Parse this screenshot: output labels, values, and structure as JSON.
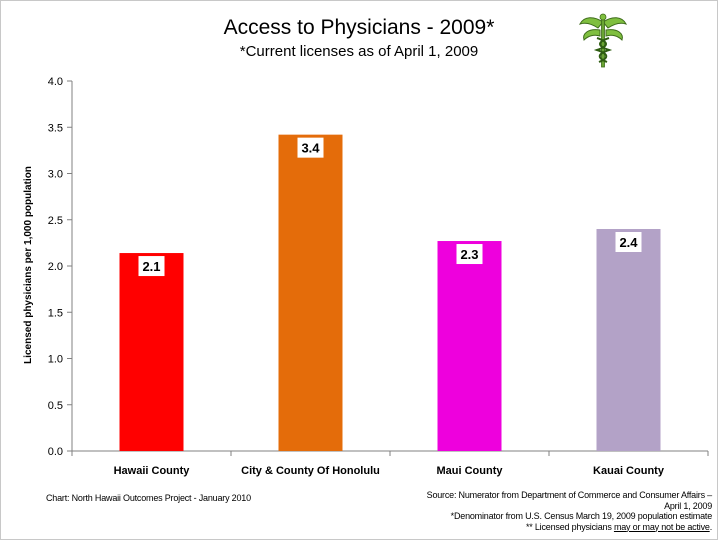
{
  "chart_data": {
    "type": "bar",
    "title": "Access to Physicians - 2009*",
    "subtitle": "*Current licenses as of April 1, 2009",
    "ylabel": "Licensed physicians per 1,000 population",
    "xlabel": "",
    "ylim": [
      0,
      4.0
    ],
    "yticks": [
      "0.0",
      "0.5",
      "1.0",
      "1.5",
      "2.0",
      "2.5",
      "3.0",
      "3.5",
      "4.0"
    ],
    "categories": [
      "Hawaii County",
      "City & County Of Honolulu",
      "Maui County",
      "Kauai County"
    ],
    "values": [
      2.14,
      3.42,
      2.27,
      2.4
    ],
    "data_labels": [
      "2.1",
      "3.4",
      "2.3",
      "2.4"
    ],
    "colors": [
      "#ff0000",
      "#e46c0a",
      "#ee00dd",
      "#b3a2c7"
    ],
    "grid": false,
    "legend": "none"
  },
  "logo": {
    "icon": "caduceus-icon",
    "color": "#7fbf3f"
  },
  "footer": {
    "left": "Chart: North Hawaii Outcomes Project - January 2010",
    "right_line1": "Source:  Numerator from Department of Commerce and Consumer Affairs –",
    "right_line2": "April 1, 2009",
    "right_line3": "*Denominator from U.S. Census March 19, 2009 population estimate",
    "right_line4_prefix": "** Licensed physicians ",
    "right_line4_underlined": "may or may not be active",
    "right_line4_suffix": "."
  }
}
